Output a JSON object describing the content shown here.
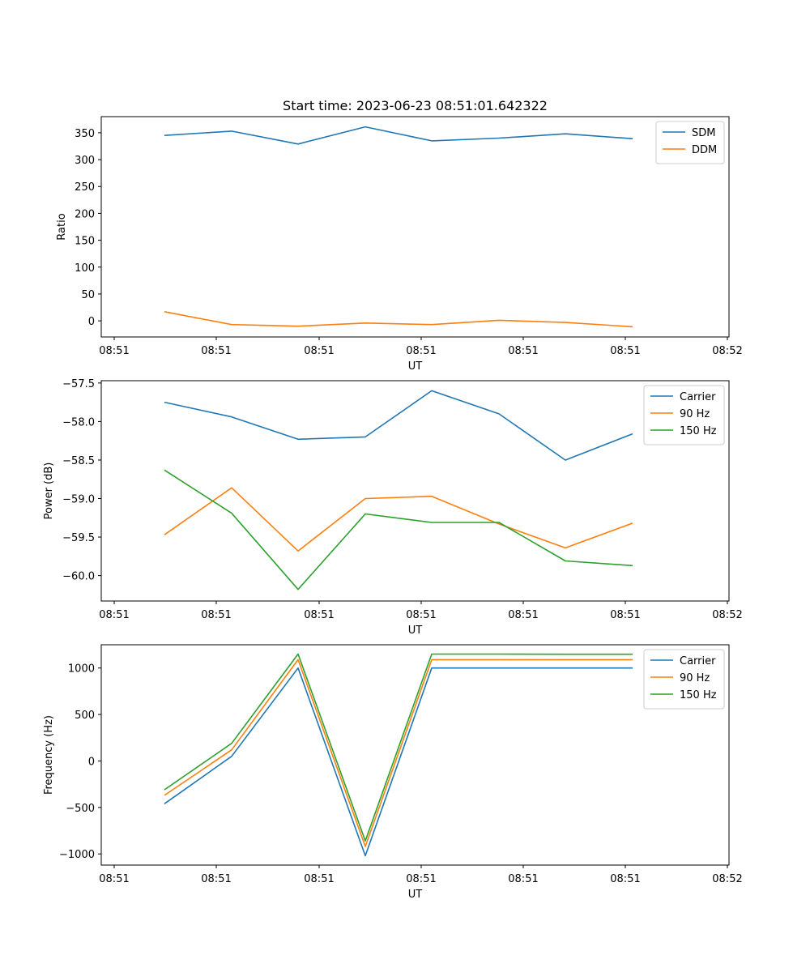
{
  "figure": {
    "title": "Start time: 2023-06-23 08:51:01.642322"
  },
  "chart_data": [
    {
      "type": "line",
      "title": "Start time: 2023-06-23 08:51:01.642322",
      "xlabel": "UT",
      "ylabel": "Ratio",
      "xtick_labels": [
        "08:51",
        "08:51",
        "08:51",
        "08:51",
        "08:51",
        "08:51",
        "08:52"
      ],
      "yticks": [
        0,
        50,
        100,
        150,
        200,
        250,
        300,
        350
      ],
      "ylim": [
        -30,
        380
      ],
      "legend_position": "top-right",
      "grid": false,
      "series": [
        {
          "name": "SDM",
          "color": "#1f77b4",
          "values": [
            345,
            353,
            329,
            361,
            335,
            340,
            348,
            339
          ]
        },
        {
          "name": "DDM",
          "color": "#ff7f0e",
          "values": [
            17,
            -7,
            -10,
            -4,
            -7,
            1,
            -3,
            -11
          ]
        }
      ]
    },
    {
      "type": "line",
      "title": "",
      "xlabel": "UT",
      "ylabel": "Power (dB)",
      "xtick_labels": [
        "08:51",
        "08:51",
        "08:51",
        "08:51",
        "08:51",
        "08:51",
        "08:52"
      ],
      "yticks": [
        -60.0,
        -59.5,
        -59.0,
        -58.5,
        -58.0,
        -57.5
      ],
      "ytick_labels": [
        "−60.0",
        "−59.5",
        "−59.0",
        "−58.5",
        "−58.0",
        "−57.5"
      ],
      "ylim": [
        -60.33,
        -57.47
      ],
      "legend_position": "top-right",
      "grid": false,
      "series": [
        {
          "name": "Carrier",
          "color": "#1f77b4",
          "values": [
            -57.75,
            -57.94,
            -58.23,
            -58.2,
            -57.6,
            -57.9,
            -58.5,
            -58.16
          ]
        },
        {
          "name": "90 Hz",
          "color": "#ff7f0e",
          "values": [
            -59.47,
            -58.86,
            -59.68,
            -59.0,
            -58.97,
            -59.33,
            -59.64,
            -59.32
          ]
        },
        {
          "name": "150 Hz",
          "color": "#2ca02c",
          "values": [
            -58.63,
            -59.19,
            -60.18,
            -59.2,
            -59.31,
            -59.31,
            -59.81,
            -59.87
          ]
        }
      ]
    },
    {
      "type": "line",
      "title": "",
      "xlabel": "UT",
      "ylabel": "Frequency (Hz)",
      "xtick_labels": [
        "08:51",
        "08:51",
        "08:51",
        "08:51",
        "08:51",
        "08:51",
        "08:52"
      ],
      "yticks": [
        -1000,
        -500,
        0,
        500,
        1000
      ],
      "ytick_labels": [
        "−1000",
        "−500",
        "0",
        "500",
        "1000"
      ],
      "ylim": [
        -1120,
        1250
      ],
      "legend_position": "top-right",
      "grid": false,
      "series": [
        {
          "name": "Carrier",
          "color": "#1f77b4",
          "values": [
            -460,
            50,
            1000,
            -1020,
            1000,
            1000,
            1000,
            1000
          ]
        },
        {
          "name": "90 Hz",
          "color": "#ff7f0e",
          "values": [
            -370,
            120,
            1090,
            -920,
            1090,
            1090,
            1090,
            1090
          ]
        },
        {
          "name": "150 Hz",
          "color": "#2ca02c",
          "values": [
            -310,
            190,
            1150,
            -860,
            1150,
            1150,
            1148,
            1148
          ]
        }
      ]
    }
  ]
}
